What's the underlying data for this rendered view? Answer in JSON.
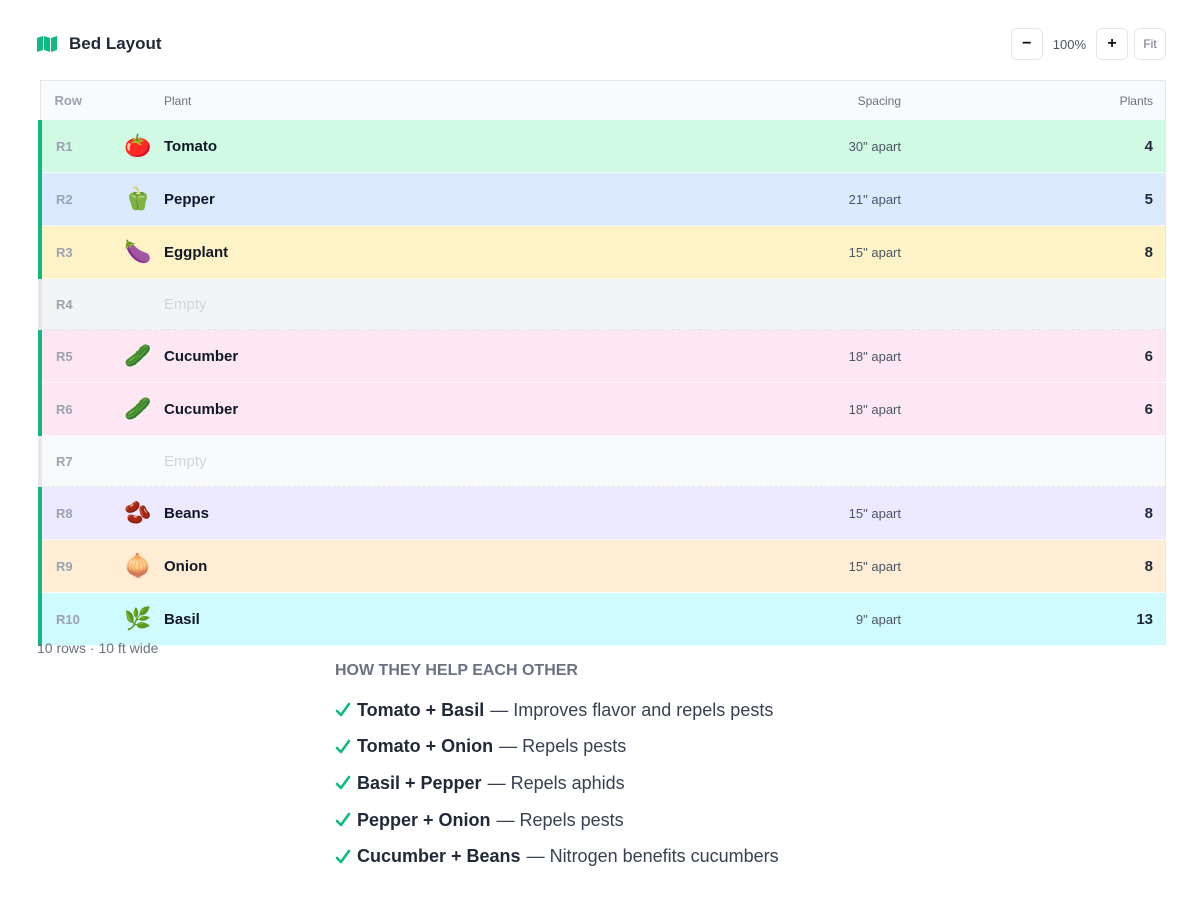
{
  "header": {
    "title": "Bed Layout",
    "zoom": {
      "minus": "−",
      "level": "100%",
      "plus": "+",
      "fit": "Fit"
    }
  },
  "table": {
    "columns": [
      "Row",
      "Plant",
      "Spacing",
      "Plants"
    ],
    "rows": [
      {
        "row": "R1",
        "icon": "🍅",
        "plant": "Tomato",
        "spacing": "30\" apart",
        "plants": 4,
        "color": "#d1fae5"
      },
      {
        "row": "R2",
        "icon": "🫑",
        "plant": "Pepper",
        "spacing": "21\" apart",
        "plants": 5,
        "color": "#dbeafe"
      },
      {
        "row": "R3",
        "icon": "🍆",
        "plant": "Eggplant",
        "spacing": "15\" apart",
        "plants": 8,
        "color": "#fef3c7"
      },
      {
        "row": "R4",
        "plant": "Empty",
        "color": "#f3f4f6"
      },
      {
        "row": "R5",
        "icon": "🥒",
        "plant": "Cucumber",
        "spacing": "18\" apart",
        "plants": 6,
        "color": "#fce7f3"
      },
      {
        "row": "R6",
        "icon": "🥒",
        "plant": "Cucumber",
        "spacing": "18\" apart",
        "plants": 6,
        "color": "#fce7f3"
      },
      {
        "row": "R7",
        "plant": "Empty",
        "color": "#f9fafb"
      },
      {
        "row": "R8",
        "icon": "🫘",
        "plant": "Beans",
        "spacing": "15\" apart",
        "plants": 8,
        "color": "#ede9fe"
      },
      {
        "row": "R9",
        "icon": "🧅",
        "plant": "Onion",
        "spacing": "15\" apart",
        "plants": 8,
        "color": "#ffedd5"
      },
      {
        "row": "R10",
        "icon": "🌿",
        "plant": "Basil",
        "spacing": "9\" apart",
        "plants": 13,
        "color": "#cffafe"
      }
    ]
  },
  "footer": "10 rows · 10 ft wide",
  "companions": {
    "title": "HOW THEY HELP EACH OTHER",
    "items": [
      {
        "pair": "Tomato + Basil",
        "note": "— Improves flavor and repels pests"
      },
      {
        "pair": "Tomato + Onion",
        "note": "— Repels pests"
      },
      {
        "pair": "Basil + Pepper",
        "note": "— Repels aphids"
      },
      {
        "pair": "Pepper + Onion",
        "note": "— Repels pests"
      },
      {
        "pair": "Cucumber + Beans",
        "note": "— Nitrogen benefits cucumbers"
      }
    ]
  }
}
